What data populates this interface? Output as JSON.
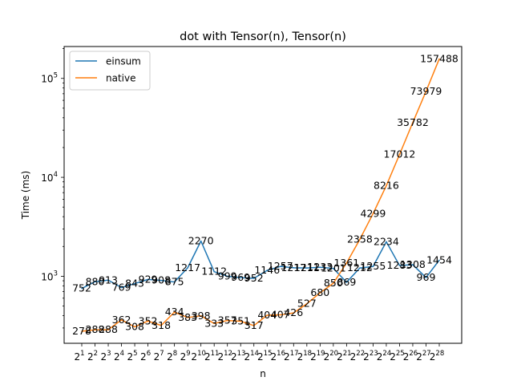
{
  "chart_data": {
    "type": "line",
    "title": "dot with Tensor(n), Tensor(n)",
    "xlabel": "n",
    "ylabel": "Time (ms)",
    "yscale": "log",
    "ylim": [
      210,
      210000
    ],
    "grid": false,
    "legend_position": "top-left",
    "x": [
      1,
      2,
      3,
      4,
      5,
      6,
      7,
      8,
      9,
      10,
      11,
      12,
      13,
      14,
      15,
      16,
      17,
      18,
      19,
      20,
      21,
      22,
      23,
      24,
      25,
      26,
      27,
      28
    ],
    "x_tick_base": "2",
    "series": [
      {
        "name": "einsum",
        "color": "#1f77b4",
        "values": [
          752,
          880,
          913,
          769,
          843,
          929,
          908,
          875,
          1217,
          2270,
          1112,
          999,
          969,
          952,
          1146,
          1257,
          1217,
          1211,
          1233,
          1201,
          869,
          1212,
          1255,
          2234,
          1283,
          1308,
          969,
          1454
        ]
      },
      {
        "name": "native",
        "color": "#ff7f0e",
        "values": [
          278,
          288,
          288,
          362,
          308,
          352,
          318,
          434,
          383,
          398,
          333,
          357,
          351,
          317,
          404,
          407,
          426,
          527,
          680,
          850,
          1361,
          2358,
          4299,
          8216,
          17012,
          35782,
          73979,
          157488
        ]
      }
    ]
  }
}
